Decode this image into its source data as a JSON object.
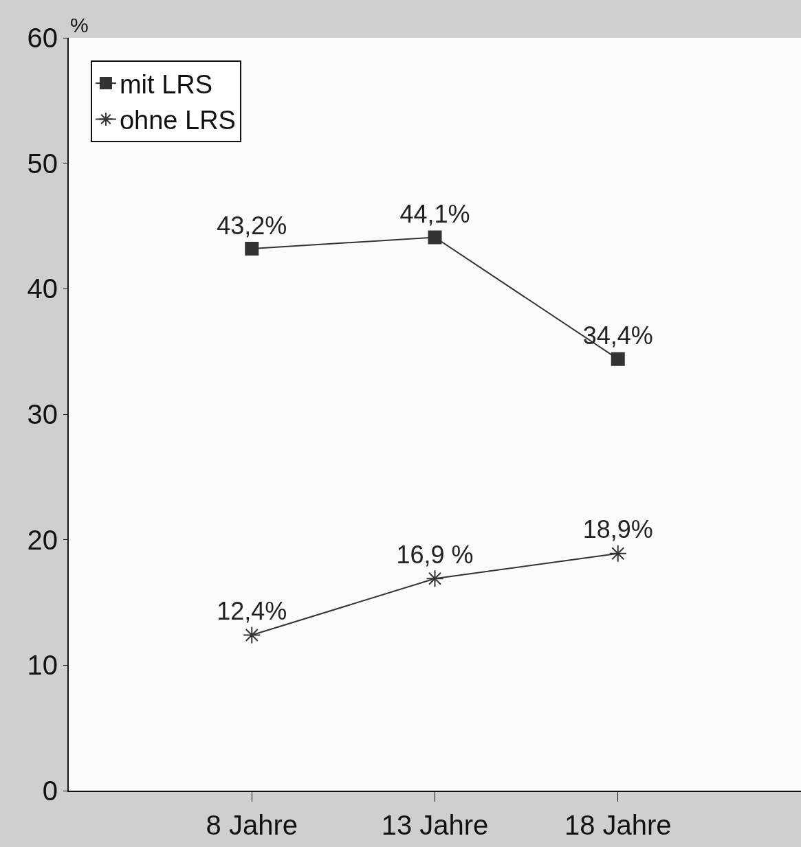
{
  "chart_data": {
    "type": "line",
    "ylabel": "%",
    "categories": [
      "8 Jahre",
      "13 Jahre",
      "18 Jahre"
    ],
    "series": [
      {
        "name": "mit LRS",
        "color": "#333333",
        "marker": "square",
        "values": [
          43.2,
          44.1,
          34.4
        ],
        "value_labels": [
          "43,2%",
          "44,1%",
          "34,4%"
        ]
      },
      {
        "name": "ohne LRS",
        "color": "#333333",
        "marker": "cross",
        "values": [
          12.4,
          16.9,
          18.9
        ],
        "value_labels": [
          "12,4%",
          "16,9 %",
          "18,9%"
        ]
      }
    ],
    "ylim": [
      0,
      60
    ],
    "yticks": [
      0,
      10,
      20,
      30,
      40,
      50,
      60
    ],
    "grid": false,
    "legend": "top left",
    "line_style": "solid"
  }
}
